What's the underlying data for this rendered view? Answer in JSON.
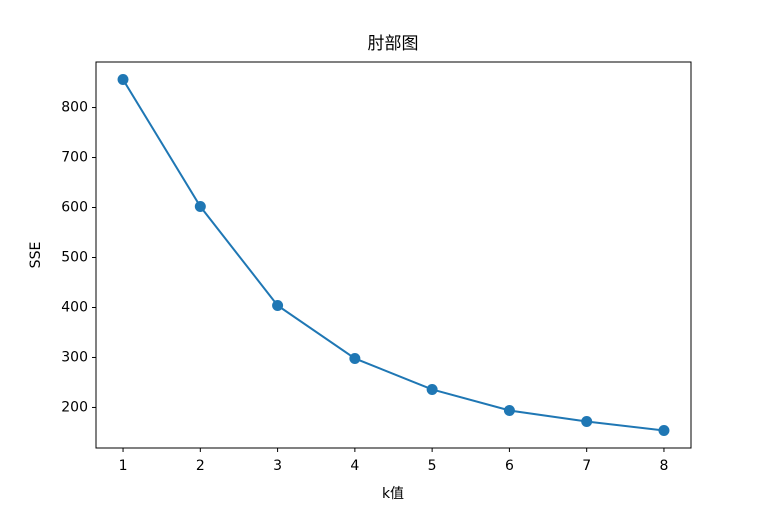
{
  "chart_data": {
    "type": "line",
    "title": "肘部图",
    "x_label": "k值",
    "y_label": "SSE",
    "x": [
      1,
      2,
      3,
      4,
      5,
      6,
      7,
      8
    ],
    "series": [
      {
        "name": "SSE",
        "color": "#1f77b4",
        "values": [
          856,
          602,
          404,
          298,
          236,
          194,
          172,
          154
        ]
      }
    ],
    "xlim": [
      0.65,
      8.35
    ],
    "ylim": [
      118.9,
      891.1
    ],
    "xticks": [
      1,
      2,
      3,
      4,
      5,
      6,
      7,
      8
    ],
    "yticks": [
      200,
      300,
      400,
      500,
      600,
      700,
      800
    ],
    "grid": false,
    "marker": "o"
  }
}
